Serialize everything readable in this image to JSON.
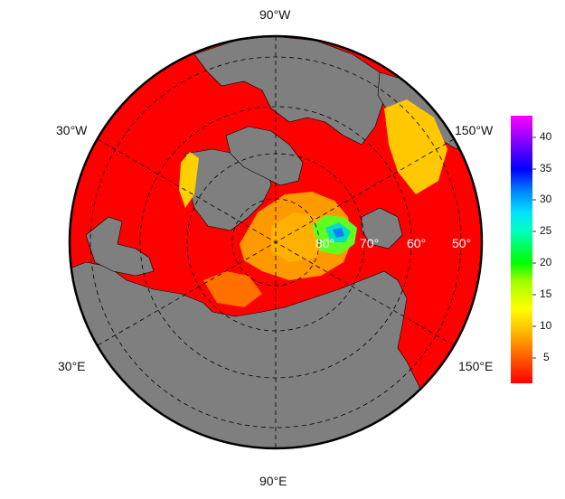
{
  "map": {
    "projection": "north polar stereographic",
    "edge_labels": {
      "top": "90°W",
      "bottom": "90°E",
      "upper_left": "30°W",
      "lower_left": "30°E",
      "upper_right": "150°W",
      "lower_right": "150°E"
    },
    "latitude_labels": [
      "80°",
      "70°",
      "60°",
      "50°"
    ],
    "colors": {
      "land": "#7f7f7f",
      "background_value": "#ff0000",
      "frame": "#000000",
      "graticule": "#000000",
      "lat_label": "#ffffff"
    }
  },
  "colorbar": {
    "ticks": [
      "40",
      "35",
      "30",
      "25",
      "20",
      "15",
      "10",
      "5"
    ],
    "range": [
      1,
      43
    ],
    "colors": [
      "#ff0000",
      "#ff8000",
      "#ffd000",
      "#c8ff00",
      "#00ff00",
      "#00ffd0",
      "#00a0ff",
      "#0030ff",
      "#6000ff",
      "#ff00ff"
    ]
  }
}
